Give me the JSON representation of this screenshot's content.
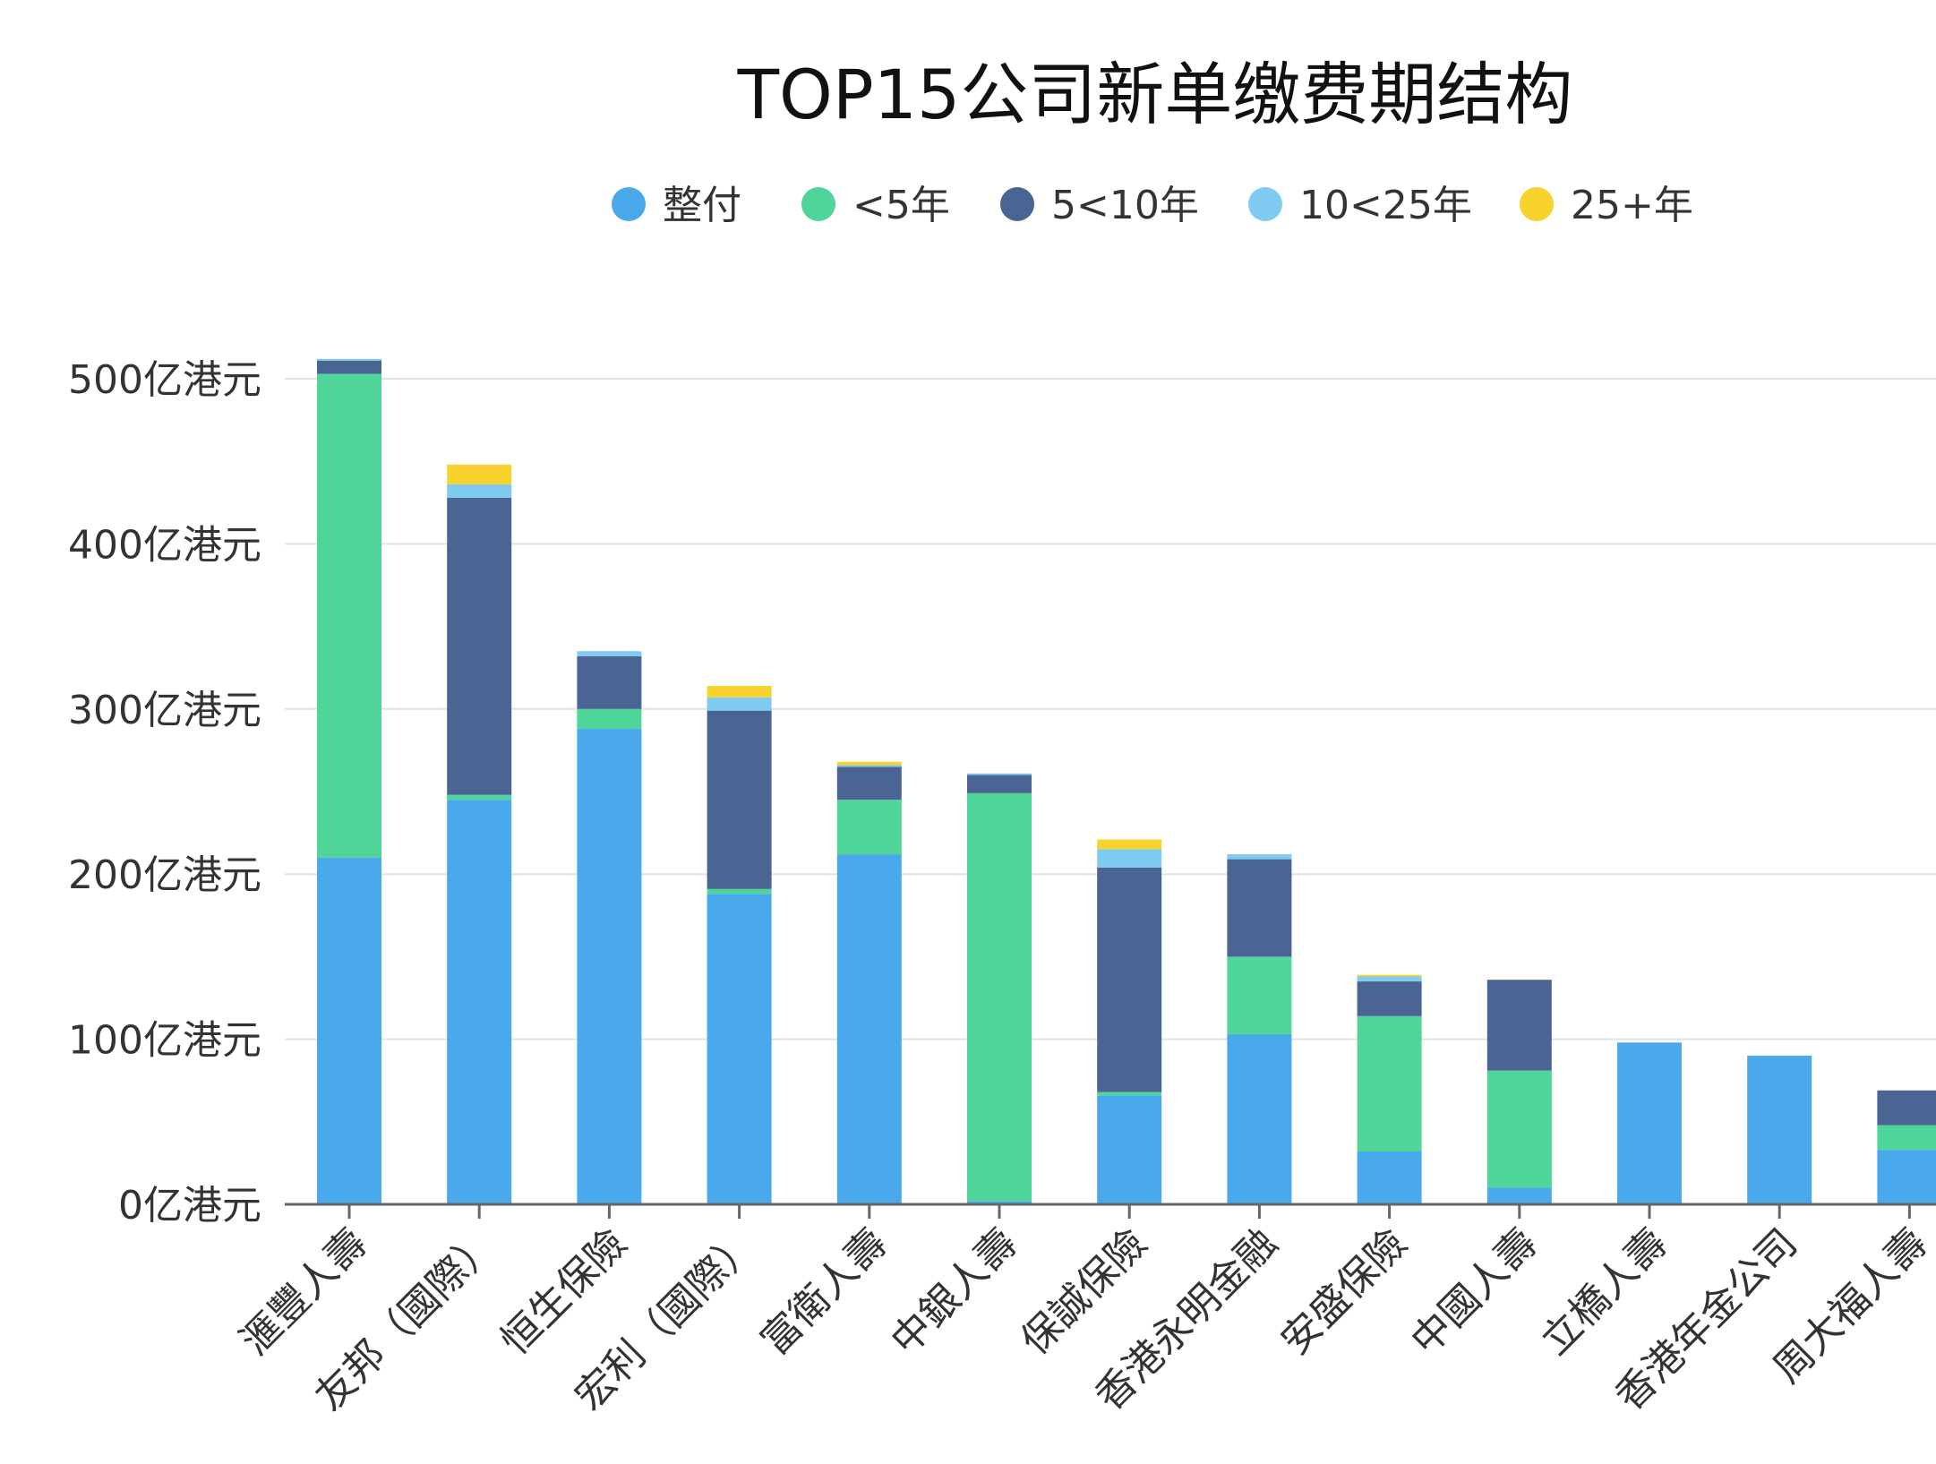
{
  "chart_data": {
    "type": "bar",
    "stacked": true,
    "title": "TOP15公司新单缴费期结构",
    "xlabel": "",
    "ylabel": "",
    "y_unit": "亿港元",
    "ylim": [
      0,
      500
    ],
    "yticks": [
      0,
      100,
      200,
      300,
      400,
      500
    ],
    "ytick_labels": [
      "0亿港元",
      "100亿港元",
      "200亿港元",
      "300亿港元",
      "400亿港元",
      "500亿港元"
    ],
    "grid": true,
    "legend_position": "top",
    "categories": [
      "滙豐人壽",
      "友邦（國際）",
      "恒生保險",
      "宏利（國際）",
      "富衛人壽",
      "中銀人壽",
      "保誠保險",
      "香港永明金融",
      "安盛保險",
      "中國人壽",
      "立橋人壽",
      "香港年金公司",
      "周大福人壽"
    ],
    "series": [
      {
        "name": "整付",
        "color": "#4aa8ec",
        "values": [
          210,
          245,
          288,
          188,
          212,
          2,
          66,
          103,
          32,
          10,
          98,
          90,
          33
        ]
      },
      {
        "name": "<5年",
        "color": "#4fd49a",
        "values": [
          293,
          3,
          12,
          3,
          33,
          247,
          2,
          47,
          82,
          71,
          0,
          0,
          15
        ]
      },
      {
        "name": "5<10年",
        "color": "#4a6593",
        "values": [
          8,
          180,
          32,
          108,
          20,
          11,
          136,
          59,
          21,
          55,
          0,
          0,
          21
        ]
      },
      {
        "name": "10<25年",
        "color": "#7fcbf2",
        "values": [
          1,
          8,
          3,
          8,
          1,
          1,
          11,
          3,
          3,
          0,
          0,
          0,
          0
        ]
      },
      {
        "name": "25+年",
        "color": "#f8d32e",
        "values": [
          0,
          12,
          0,
          7,
          2,
          0,
          6,
          0,
          1,
          0,
          0,
          0,
          0
        ]
      }
    ]
  }
}
